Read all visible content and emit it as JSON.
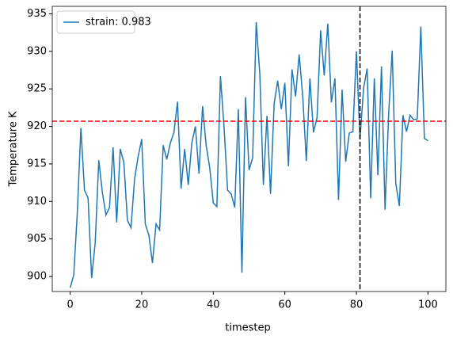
{
  "chart_data": {
    "type": "line",
    "xlabel": "timestep",
    "ylabel": "Temperature K",
    "x": [
      0,
      1,
      2,
      3,
      4,
      5,
      6,
      7,
      8,
      9,
      10,
      11,
      12,
      13,
      14,
      15,
      16,
      17,
      18,
      19,
      20,
      21,
      22,
      23,
      24,
      25,
      26,
      27,
      28,
      29,
      30,
      31,
      32,
      33,
      34,
      35,
      36,
      37,
      38,
      39,
      40,
      41,
      42,
      43,
      44,
      45,
      46,
      47,
      48,
      49,
      50,
      51,
      52,
      53,
      54,
      55,
      56,
      57,
      58,
      59,
      60,
      61,
      62,
      63,
      64,
      65,
      66,
      67,
      68,
      69,
      70,
      71,
      72,
      73,
      74,
      75,
      76,
      77,
      78,
      79,
      80,
      81,
      82,
      83,
      84,
      85,
      86,
      87,
      88,
      89,
      90,
      91,
      92,
      93,
      94,
      95,
      96,
      97,
      98,
      99,
      100
    ],
    "series": [
      {
        "name": "strain: 0.983",
        "color": "#1f77b4",
        "values": [
          898.5,
          900.2,
          908.5,
          919.8,
          911.5,
          910.5,
          899.8,
          904.5,
          915.5,
          911.2,
          908.2,
          909.2,
          917.2,
          907.2,
          917.0,
          915.2,
          907.5,
          906.5,
          913.0,
          916.0,
          918.3,
          907.0,
          905.5,
          901.8,
          907.0,
          906.2,
          917.5,
          915.6,
          917.8,
          919.2,
          923.3,
          911.7,
          917.0,
          912.2,
          917.8,
          920.0,
          913.7,
          922.7,
          917.5,
          914.5,
          909.8,
          909.3,
          926.7,
          920.0,
          911.5,
          911.0,
          909.2,
          922.3,
          900.5,
          923.9,
          914.2,
          915.8,
          933.9,
          927.0,
          912.2,
          921.4,
          911.0,
          923.0,
          926.1,
          922.3,
          925.8,
          914.7,
          927.6,
          924.0,
          929.6,
          924.0,
          915.4,
          926.4,
          919.2,
          921.2,
          932.8,
          926.8,
          933.7,
          923.2,
          926.4,
          910.2,
          924.9,
          915.3,
          919.1,
          919.3,
          930.0,
          918.3,
          925.1,
          927.7,
          910.4,
          926.4,
          913.5,
          928.0,
          908.9,
          921.6,
          930.1,
          912.4,
          909.4,
          921.5,
          919.3,
          921.5,
          920.9,
          921.0,
          933.3,
          918.4,
          918.1
        ]
      }
    ],
    "hline": {
      "y": 920.7,
      "color": "#ff0000"
    },
    "vline": {
      "x": 81,
      "color": "#000000"
    },
    "xlim": [
      -5,
      105
    ],
    "ylim": [
      898,
      936
    ],
    "xticks": [
      0,
      20,
      40,
      60,
      80,
      100
    ],
    "yticks": [
      900,
      905,
      910,
      915,
      920,
      925,
      930,
      935
    ],
    "grid": false,
    "legend": "upper left"
  }
}
